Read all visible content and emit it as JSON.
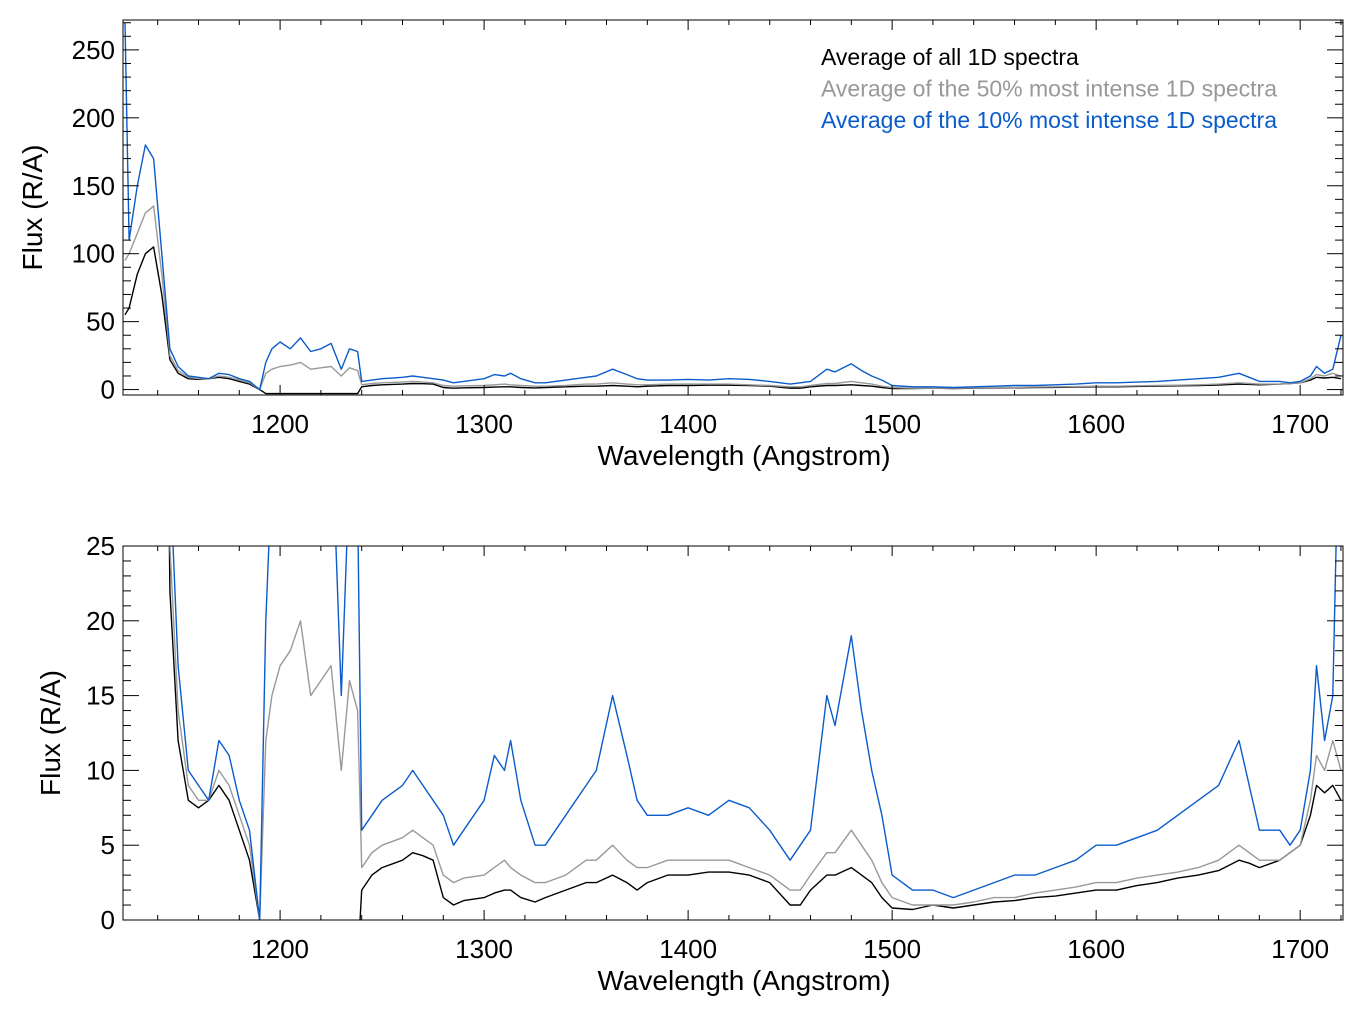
{
  "chart_data": {
    "type": "line",
    "x": [
      1124,
      1126,
      1130,
      1134,
      1138,
      1142,
      1146,
      1150,
      1155,
      1160,
      1165,
      1170,
      1175,
      1180,
      1185,
      1190,
      1193,
      1196,
      1200,
      1205,
      1210,
      1215,
      1220,
      1225,
      1230,
      1234,
      1238,
      1240,
      1245,
      1250,
      1260,
      1265,
      1270,
      1275,
      1280,
      1285,
      1290,
      1300,
      1305,
      1310,
      1313,
      1318,
      1325,
      1330,
      1340,
      1350,
      1355,
      1363,
      1370,
      1375,
      1380,
      1390,
      1400,
      1410,
      1420,
      1430,
      1440,
      1450,
      1455,
      1460,
      1468,
      1472,
      1480,
      1485,
      1490,
      1495,
      1500,
      1510,
      1520,
      1530,
      1540,
      1550,
      1560,
      1570,
      1580,
      1590,
      1600,
      1610,
      1620,
      1630,
      1640,
      1650,
      1660,
      1670,
      1675,
      1680,
      1690,
      1695,
      1700,
      1705,
      1708,
      1712,
      1716,
      1720
    ],
    "series": [
      {
        "name": "Average of all 1D spectra",
        "color": "#000000",
        "values": [
          55,
          60,
          85,
          100,
          105,
          70,
          22,
          12,
          8,
          7.5,
          8,
          9,
          8,
          6,
          4,
          0,
          -3,
          -3,
          -3,
          -3,
          -3,
          -3,
          -3,
          -3,
          -3,
          -3,
          -3,
          2,
          3,
          3.5,
          4,
          4.5,
          4.3,
          4,
          1.5,
          1,
          1.3,
          1.5,
          1.8,
          2,
          2,
          1.5,
          1.2,
          1.5,
          2,
          2.5,
          2.5,
          3,
          2.5,
          2,
          2.5,
          3,
          3,
          3.2,
          3.2,
          3,
          2.5,
          1,
          1,
          2,
          3,
          3,
          3.5,
          3,
          2.5,
          1.5,
          0.8,
          0.7,
          1,
          0.8,
          1,
          1.2,
          1.3,
          1.5,
          1.6,
          1.8,
          2,
          2,
          2.3,
          2.5,
          2.8,
          3,
          3.3,
          4,
          3.8,
          3.5,
          4,
          4.5,
          5,
          7,
          9,
          8.5,
          9,
          8
        ]
      },
      {
        "name": "Average of the 50% most intense 1D spectra",
        "color": "#999999",
        "values": [
          95,
          100,
          115,
          130,
          135,
          85,
          25,
          14,
          9,
          8,
          8,
          10,
          9,
          7,
          5,
          0,
          12,
          15,
          17,
          18,
          20,
          15,
          16,
          17,
          10,
          16,
          14,
          3.5,
          4.5,
          5,
          5.5,
          6,
          5.5,
          5,
          3,
          2.5,
          2.8,
          3,
          3.5,
          4,
          3.5,
          3,
          2.5,
          2.5,
          3,
          4,
          4,
          5,
          4,
          3.5,
          3.5,
          4,
          4,
          4,
          4,
          3.5,
          3,
          2,
          2,
          3,
          4.5,
          4.5,
          6,
          5,
          4,
          2.5,
          1.5,
          1,
          1,
          1,
          1.2,
          1.5,
          1.5,
          1.8,
          2,
          2.2,
          2.5,
          2.5,
          2.8,
          3,
          3.2,
          3.5,
          4,
          5,
          4.5,
          4,
          4,
          4.5,
          5,
          8,
          11,
          10,
          12,
          10
        ]
      },
      {
        "name": "Average of the 10% most intense 1D spectra",
        "color": "#0a5ccc",
        "values": [
          270,
          110,
          150,
          180,
          170,
          100,
          30,
          17,
          10,
          9,
          8,
          12,
          11,
          8,
          6,
          0,
          20,
          30,
          35,
          30,
          38,
          28,
          30,
          34,
          15,
          30,
          28,
          6,
          7,
          8,
          9,
          10,
          9,
          8,
          7,
          5,
          6,
          8,
          11,
          10,
          12,
          8,
          5,
          5,
          7,
          9,
          10,
          15,
          11,
          8,
          7,
          7,
          7.5,
          7,
          8,
          7.5,
          6,
          4,
          5,
          6,
          15,
          13,
          19,
          14,
          10,
          7,
          3,
          2,
          2,
          1.5,
          2,
          2.5,
          3,
          3,
          3.5,
          4,
          5,
          5,
          5.5,
          6,
          7,
          8,
          9,
          12,
          9,
          6,
          6,
          5,
          6,
          10,
          17,
          12,
          15,
          40
        ]
      }
    ],
    "xlim": [
      1123,
      1721
    ],
    "xticks": [
      1200,
      1300,
      1400,
      1500,
      1600,
      1700
    ],
    "xlabel": "Wavelength (Angstrom)",
    "ylabel": "Flux (R/A)",
    "legend_position": "top-right",
    "panels": [
      {
        "ylim": [
          -4,
          272
        ],
        "yticks": [
          0,
          50,
          100,
          150,
          200,
          250
        ],
        "show_legend": true
      },
      {
        "ylim": [
          0,
          25
        ],
        "yticks": [
          0,
          5,
          10,
          15,
          20,
          25
        ],
        "show_legend": false
      }
    ]
  }
}
